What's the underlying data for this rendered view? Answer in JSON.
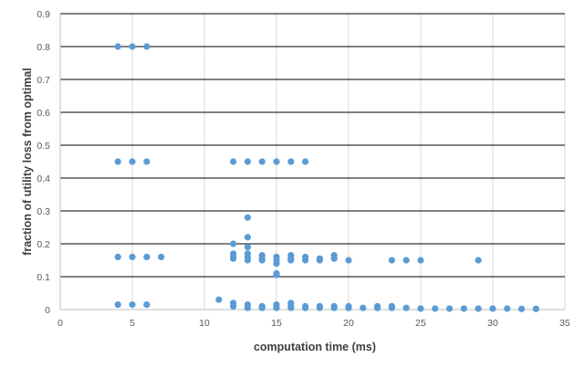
{
  "chart_data": {
    "type": "scatter",
    "xlabel": "computation time (ms)",
    "ylabel": "fraction of utility loss from optimal",
    "xlim": [
      0,
      35
    ],
    "ylim": [
      0,
      0.9
    ],
    "x_ticks": [
      0,
      5,
      10,
      15,
      20,
      25,
      30,
      35
    ],
    "y_ticks": [
      0,
      0.1,
      0.2,
      0.3,
      0.4,
      0.5,
      0.6,
      0.7,
      0.8,
      0.9
    ],
    "grid": true,
    "legend": "none",
    "marker_color": "#5B9BD5",
    "points": [
      [
        4,
        0.8
      ],
      [
        5,
        0.8
      ],
      [
        6,
        0.8
      ],
      [
        4,
        0.45
      ],
      [
        5,
        0.45
      ],
      [
        6,
        0.45
      ],
      [
        12,
        0.45
      ],
      [
        13,
        0.45
      ],
      [
        14,
        0.45
      ],
      [
        15,
        0.45
      ],
      [
        16,
        0.45
      ],
      [
        17,
        0.45
      ],
      [
        4,
        0.16
      ],
      [
        5,
        0.16
      ],
      [
        6,
        0.16
      ],
      [
        7,
        0.16
      ],
      [
        12,
        0.2
      ],
      [
        12,
        0.17
      ],
      [
        12,
        0.16
      ],
      [
        12,
        0.155
      ],
      [
        13,
        0.28
      ],
      [
        13,
        0.22
      ],
      [
        13,
        0.19
      ],
      [
        13,
        0.17
      ],
      [
        13,
        0.16
      ],
      [
        13,
        0.15
      ],
      [
        14,
        0.165
      ],
      [
        14,
        0.155
      ],
      [
        14,
        0.15
      ],
      [
        15,
        0.16
      ],
      [
        15,
        0.15
      ],
      [
        15,
        0.14
      ],
      [
        15,
        0.11
      ],
      [
        15,
        0.105
      ],
      [
        16,
        0.165
      ],
      [
        16,
        0.155
      ],
      [
        16,
        0.15
      ],
      [
        17,
        0.16
      ],
      [
        17,
        0.15
      ],
      [
        18,
        0.155
      ],
      [
        18,
        0.15
      ],
      [
        19,
        0.165
      ],
      [
        19,
        0.155
      ],
      [
        20,
        0.15
      ],
      [
        23,
        0.15
      ],
      [
        24,
        0.15
      ],
      [
        25,
        0.15
      ],
      [
        29,
        0.15
      ],
      [
        4,
        0.015
      ],
      [
        5,
        0.015
      ],
      [
        6,
        0.015
      ],
      [
        11,
        0.03
      ],
      [
        12,
        0.02
      ],
      [
        12,
        0.01
      ],
      [
        13,
        0.015
      ],
      [
        13,
        0.005
      ],
      [
        14,
        0.01
      ],
      [
        14,
        0.005
      ],
      [
        15,
        0.015
      ],
      [
        15,
        0.005
      ],
      [
        16,
        0.02
      ],
      [
        16,
        0.01
      ],
      [
        16,
        0.005
      ],
      [
        17,
        0.01
      ],
      [
        17,
        0.005
      ],
      [
        18,
        0.01
      ],
      [
        18,
        0.005
      ],
      [
        19,
        0.01
      ],
      [
        19,
        0.005
      ],
      [
        20,
        0.01
      ],
      [
        20,
        0.005
      ],
      [
        21,
        0.005
      ],
      [
        22,
        0.01
      ],
      [
        22,
        0.005
      ],
      [
        23,
        0.01
      ],
      [
        23,
        0.005
      ],
      [
        24,
        0.005
      ],
      [
        25,
        0.003
      ],
      [
        26,
        0.003
      ],
      [
        27,
        0.003
      ],
      [
        28,
        0.003
      ],
      [
        29,
        0.003
      ],
      [
        30,
        0.003
      ],
      [
        31,
        0.003
      ],
      [
        32,
        0.002
      ],
      [
        33,
        0.002
      ]
    ]
  }
}
